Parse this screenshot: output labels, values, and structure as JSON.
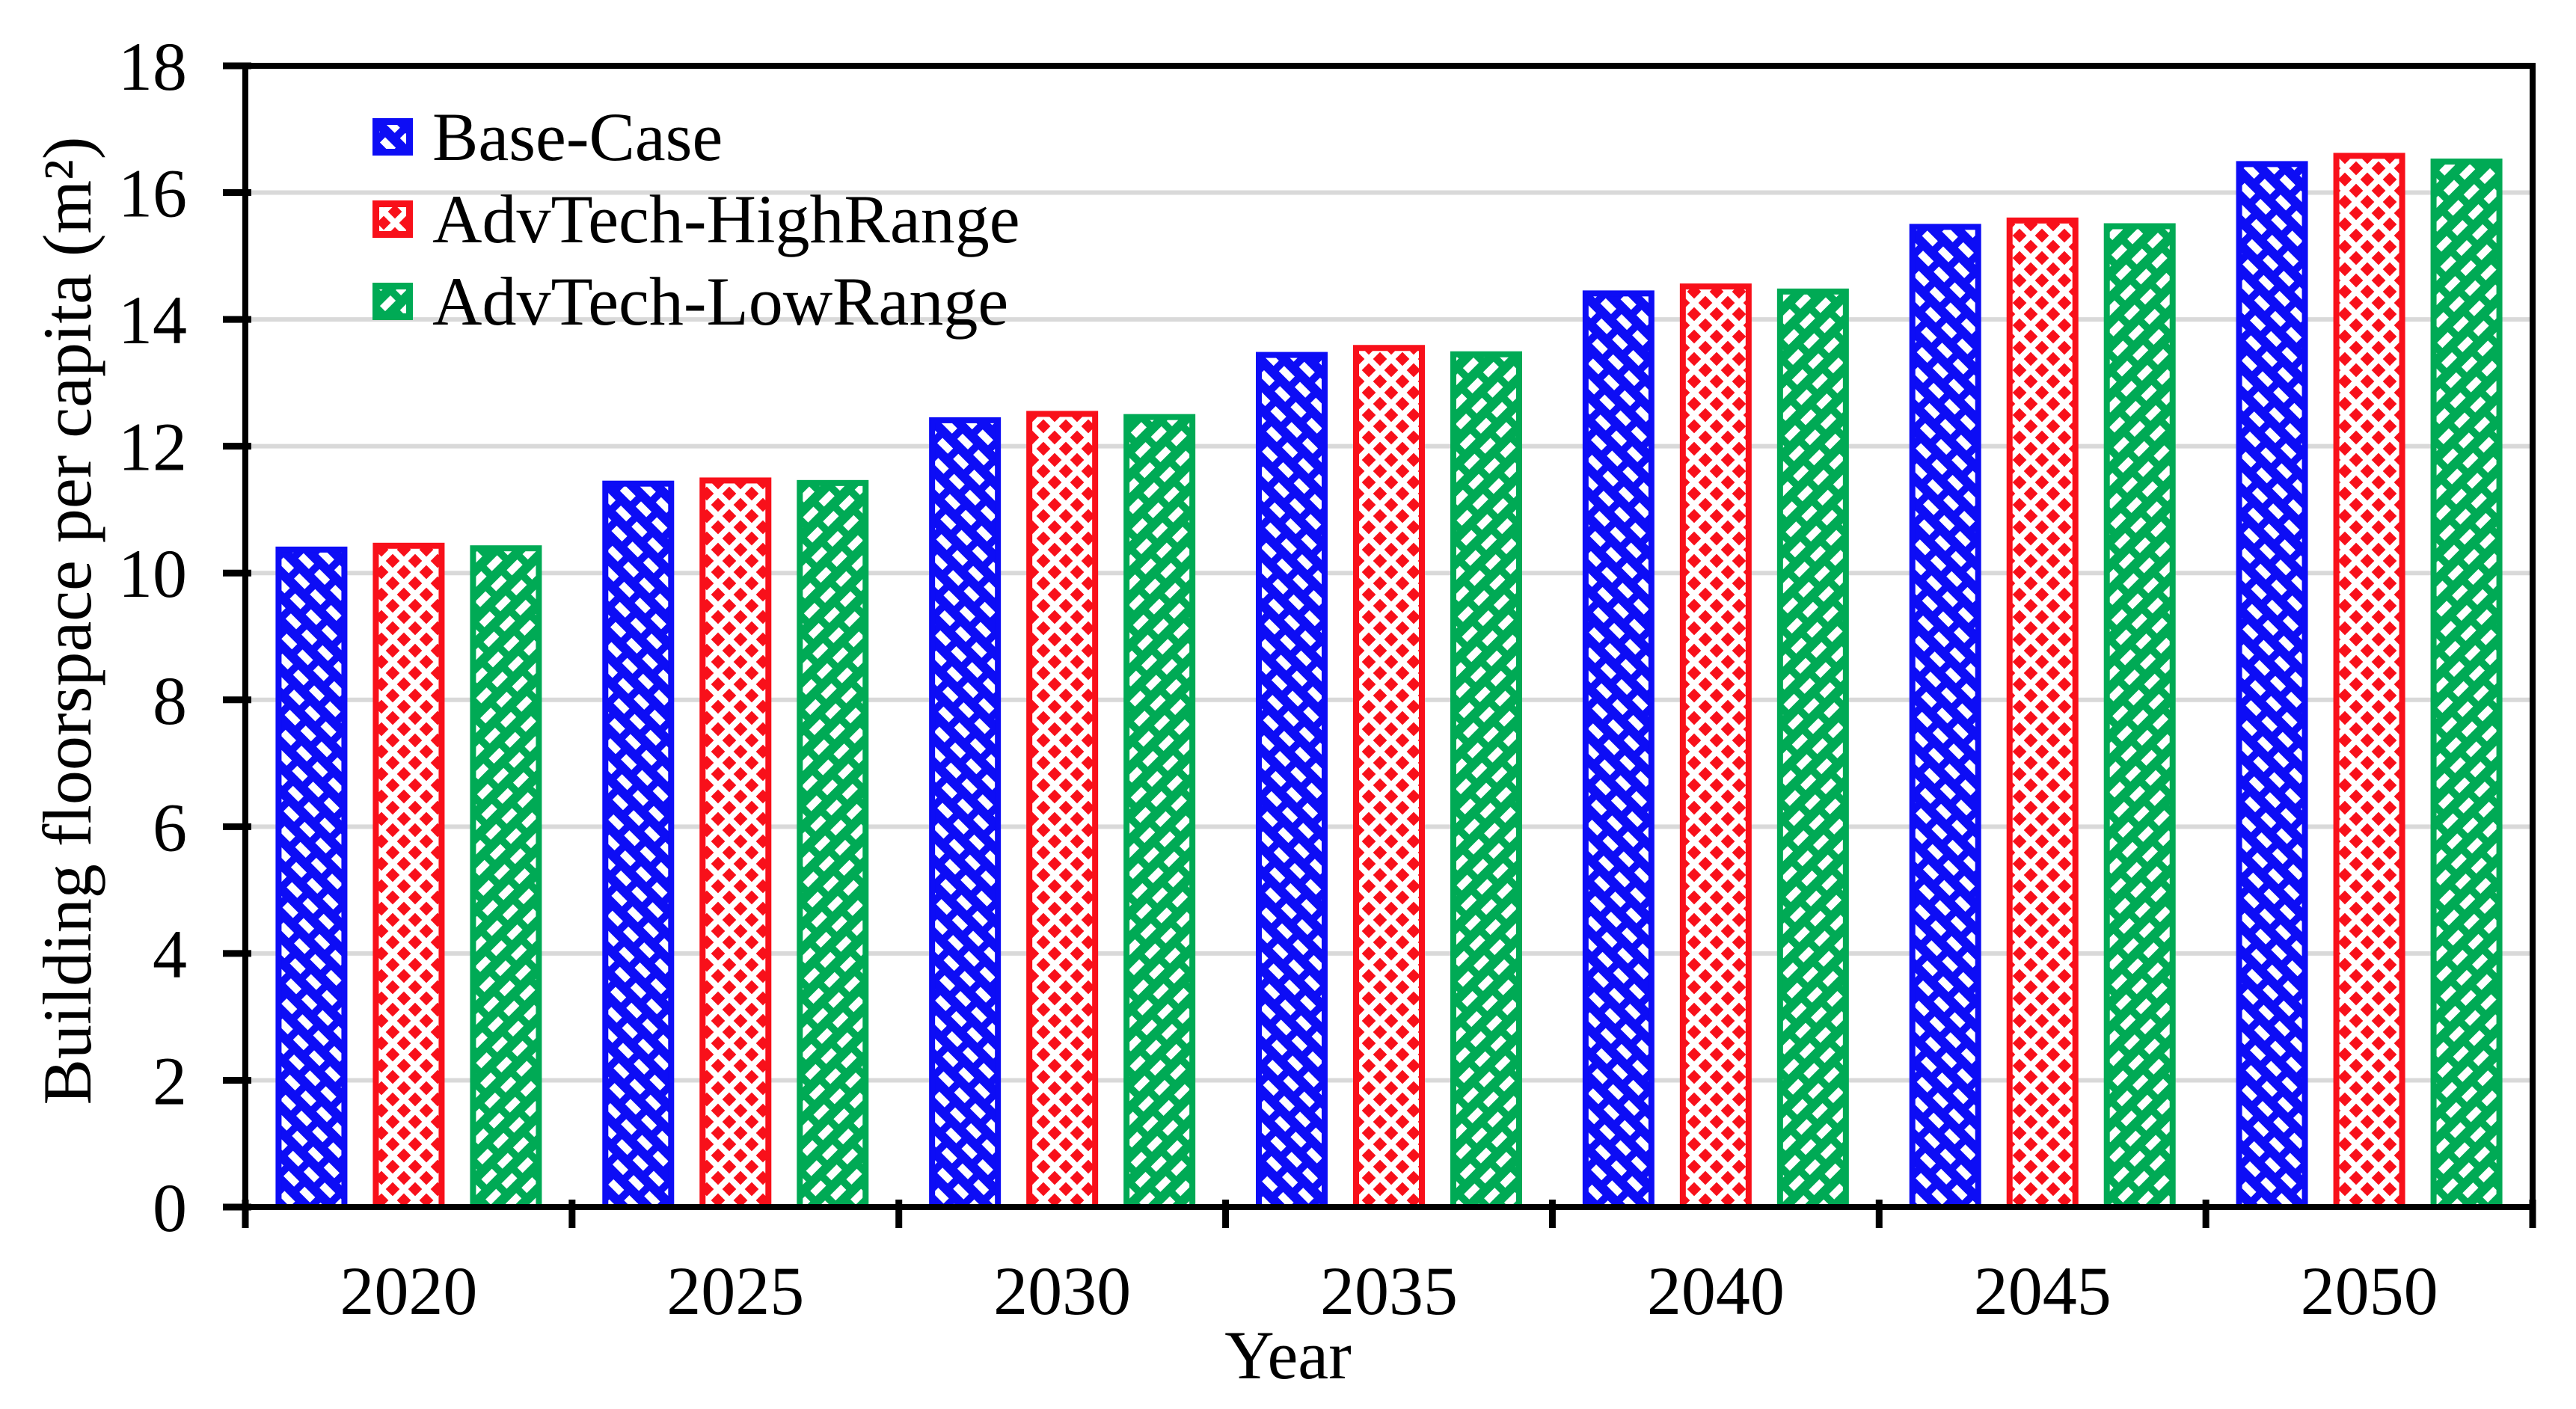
{
  "chart_data": {
    "type": "bar",
    "title": "",
    "xlabel": "Year",
    "ylabel": "Building floorspace per capita (m²)",
    "categories": [
      "2020",
      "2025",
      "2030",
      "2035",
      "2040",
      "2045",
      "2050"
    ],
    "series": [
      {
        "name": "Base-Case",
        "color": "#0d0df5",
        "hatch": "diagonal-down",
        "hatch_color": "#ffffff",
        "values": [
          10.37,
          11.41,
          12.41,
          13.44,
          14.41,
          15.46,
          16.45
        ]
      },
      {
        "name": "AdvTech-HighRange",
        "color": "#f8101a",
        "hatch": "diagonal-crosshatch",
        "hatch_color": "#ffffff",
        "values": [
          10.43,
          11.46,
          12.51,
          13.55,
          14.52,
          15.56,
          16.58
        ]
      },
      {
        "name": "AdvTech-LowRange",
        "color": "#00aa55",
        "hatch": "diagonal-up",
        "hatch_color": "#ffffff",
        "values": [
          10.39,
          11.42,
          12.46,
          13.45,
          14.44,
          15.47,
          16.49
        ]
      }
    ],
    "ylim": [
      0,
      18
    ],
    "yticks": [
      0,
      2,
      4,
      6,
      8,
      10,
      12,
      14,
      16,
      18
    ],
    "grid": "horizontal",
    "grid_color": "#d9d9d9",
    "axis_color": "#000000",
    "legend_position": "inside-top-left"
  }
}
